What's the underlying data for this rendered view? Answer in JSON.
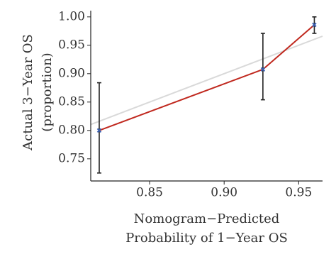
{
  "chart_data": {
    "type": "line",
    "x_label": [
      "Nomogram−Predicted",
      "Probability of 1−Year OS"
    ],
    "y_label": [
      "Actual 3−Year OS",
      "(proportion)"
    ],
    "x": [
      0.8162,
      0.926,
      0.9605
    ],
    "series": [
      {
        "color": "#c0281e",
        "point_color": "#3a5fb0",
        "error_color": "#222222",
        "values": [
          0.8,
          0.9075,
          0.986
        ],
        "lower": [
          0.725,
          0.854,
          0.971
        ],
        "upper": [
          0.884,
          0.971,
          1.0
        ]
      }
    ],
    "diagonal": true,
    "diagonal_color": "#d9d9d9",
    "xlim": [
      0.8105,
      0.966
    ],
    "ylim": [
      0.711,
      1.011
    ],
    "xticks": [
      0.85,
      {
        "value": 0.9,
        "label": "0.90"
      },
      0.95
    ],
    "yticks": [
      0.75,
      {
        "value": 0.8,
        "label": "0.80"
      },
      0.85,
      {
        "value": 0.9,
        "label": "0.90"
      },
      0.95,
      {
        "value": 1.0,
        "label": "1.00"
      }
    ]
  }
}
